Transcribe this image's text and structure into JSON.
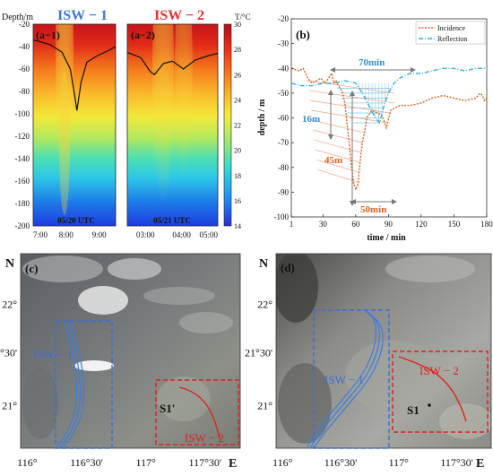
{
  "panels": {
    "a1": {
      "tag": "(a−1)",
      "title": "ISW − 1",
      "title_color": "#3a78d8",
      "date": "05/20 UTC",
      "xticks": [
        "7:00",
        "8:00",
        "9:00"
      ]
    },
    "a2": {
      "tag": "(a−2)",
      "title": "ISW − 2",
      "title_color": "#e83030",
      "date": "05/21 UTC",
      "xticks": [
        "03:00",
        "04:00",
        "05:00"
      ]
    },
    "a_axis": {
      "ylabel": "Depth/m",
      "yticks": [
        "-20",
        "-40",
        "-60",
        "-80",
        "-100",
        "-120",
        "-140",
        "-160",
        "-180",
        "-200"
      ]
    },
    "colorbar": {
      "unit": "T/°C",
      "ticks": [
        "30",
        "28",
        "26",
        "24",
        "22",
        "20",
        "18",
        "16",
        "14"
      ]
    },
    "b": {
      "tag": "(b)",
      "annotations": {
        "t70": "70min",
        "d16": "16m",
        "d45": "45m",
        "t50": "50min"
      }
    },
    "c": {
      "tag": "(c)",
      "isw1": "ISW − 1",
      "isw2": "ISW − 2",
      "station": "S1'"
    },
    "d": {
      "tag": "(d)",
      "isw1": "ISW − 1",
      "isw2": "ISW − 2",
      "station": "S1"
    },
    "maps": {
      "north": "N",
      "east": "E",
      "lat_ticks": [
        "22°",
        "21°30'",
        "21°"
      ],
      "lon_ticks": [
        "116°",
        "116°30'",
        "117°",
        "117°30'"
      ]
    }
  },
  "chart_data": [
    {
      "type": "heatmap",
      "title": "ISW − 1",
      "xlabel": "05/20 UTC",
      "ylabel": "Depth/m",
      "x_range": [
        "7:00",
        "9:30"
      ],
      "ylim": [
        -200,
        -20
      ],
      "color_range_degC": [
        14,
        30
      ],
      "mixed_layer_depth": [
        [
          0,
          -34
        ],
        [
          0.2,
          -38
        ],
        [
          0.35,
          -45
        ],
        [
          0.45,
          -60
        ],
        [
          0.5,
          -82
        ],
        [
          0.53,
          -97
        ],
        [
          0.58,
          -72
        ],
        [
          0.65,
          -54
        ],
        [
          0.78,
          -48
        ],
        [
          0.9,
          -44
        ],
        [
          1,
          -40
        ]
      ]
    },
    {
      "type": "heatmap",
      "title": "ISW − 2",
      "xlabel": "05/21 UTC",
      "ylabel": "Depth/m",
      "x_range": [
        "02:30",
        "05:00"
      ],
      "ylim": [
        -200,
        -20
      ],
      "color_range_degC": [
        14,
        30
      ],
      "mixed_layer_depth": [
        [
          0,
          -45
        ],
        [
          0.15,
          -50
        ],
        [
          0.25,
          -62
        ],
        [
          0.3,
          -65
        ],
        [
          0.4,
          -55
        ],
        [
          0.5,
          -53
        ],
        [
          0.62,
          -60
        ],
        [
          0.75,
          -52
        ],
        [
          0.9,
          -48
        ],
        [
          1,
          -46
        ]
      ]
    },
    {
      "type": "line",
      "xlabel": "time / min",
      "ylabel": "depth / m",
      "xlim": [
        1,
        180
      ],
      "ylim": [
        -100,
        -20
      ],
      "xticks": [
        1,
        30,
        60,
        90,
        120,
        150,
        180
      ],
      "yticks": [
        -20,
        -30,
        -40,
        -50,
        -60,
        -70,
        -80,
        -90,
        -100
      ],
      "legend": "top-right",
      "series": [
        {
          "name": "Incidence",
          "color": "#e06020",
          "x": [
            1,
            8,
            12,
            16,
            20,
            24,
            28,
            32,
            35,
            38,
            40,
            42,
            44,
            46,
            48,
            50,
            52,
            54,
            56,
            58,
            60,
            62,
            64,
            66,
            68,
            70,
            75,
            80,
            84,
            88,
            92,
            100,
            110,
            120,
            130,
            140,
            150,
            160,
            170,
            174,
            176,
            178,
            180
          ],
          "y": [
            -40,
            -41,
            -40,
            -44,
            -46,
            -45,
            -44,
            -46,
            -44,
            -42,
            -46,
            -45,
            -47,
            -48,
            -50,
            -54,
            -62,
            -70,
            -79,
            -86,
            -89,
            -87,
            -78,
            -70,
            -66,
            -60,
            -57,
            -58,
            -59,
            -64,
            -57,
            -55,
            -55,
            -54,
            -52,
            -51,
            -52,
            -53,
            -52,
            -50,
            -51,
            -53,
            -52
          ]
        },
        {
          "name": "Reflection",
          "color": "#30b0d8",
          "x": [
            1,
            10,
            20,
            30,
            40,
            50,
            60,
            66,
            72,
            78,
            82,
            86,
            90,
            95,
            100,
            110,
            120,
            130,
            140,
            150,
            160,
            170,
            180
          ],
          "y": [
            -46,
            -47,
            -47,
            -46,
            -46,
            -45,
            -46,
            -50,
            -55,
            -60,
            -62,
            -55,
            -50,
            -46,
            -44,
            -42,
            -42,
            -41,
            -40,
            -40,
            -41,
            -40,
            -40
          ]
        }
      ]
    }
  ]
}
